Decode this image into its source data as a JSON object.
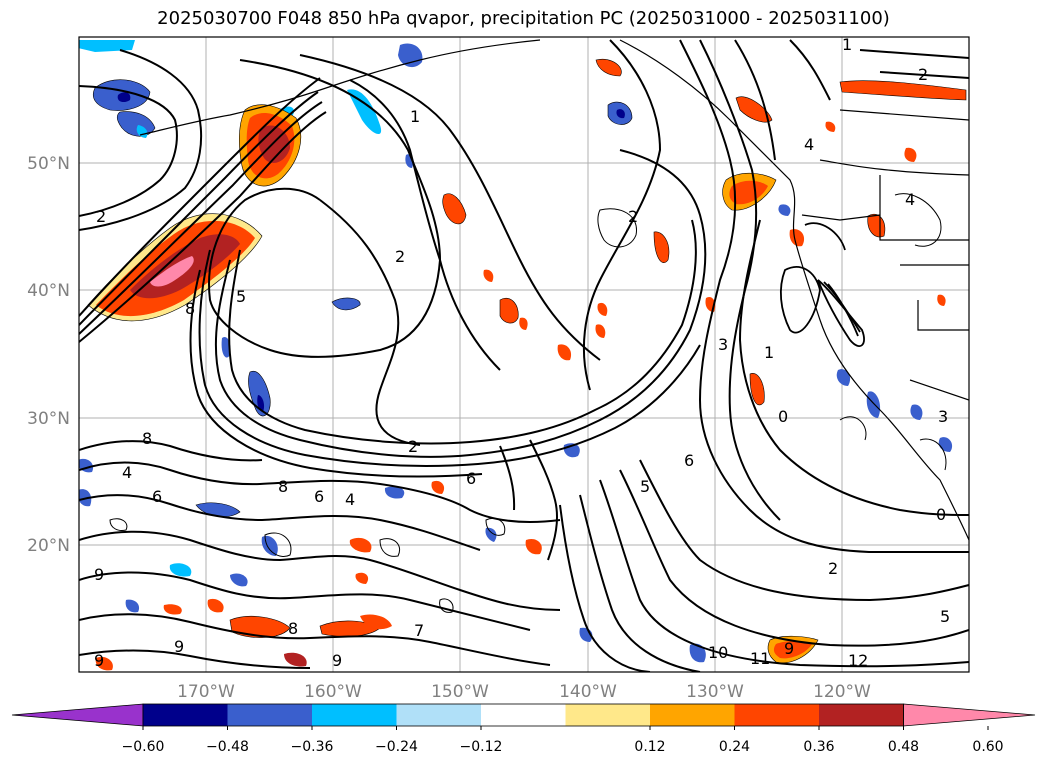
{
  "title": "2025030700 F048 850 hPa qvapor, precipitation PC (2025031000 - 2025031100)",
  "map": {
    "lat_labels": [
      "50°N",
      "40°N",
      "30°N",
      "20°N"
    ],
    "lon_labels": [
      "170°W",
      "160°W",
      "150°W",
      "140°W",
      "130°W",
      "120°W"
    ],
    "contour_labels": [
      "1",
      "2",
      "2",
      "1",
      "2",
      "4",
      "4",
      "8",
      "5",
      "8",
      "6",
      "8",
      "4",
      "6",
      "2",
      "3",
      "1",
      "2",
      "0",
      "6",
      "5",
      "2",
      "8",
      "9",
      "9",
      "9",
      "9",
      "7",
      "10",
      "11",
      "12",
      "5",
      "0",
      "4",
      "3",
      "9",
      "6"
    ]
  },
  "colorbar": {
    "ticks": [
      "−0.60",
      "−0.48",
      "−0.36",
      "−0.24",
      "−0.12",
      "0.12",
      "0.24",
      "0.36",
      "0.48",
      "0.60"
    ],
    "colors": [
      "#9932cc",
      "#00008b",
      "#3a5fcd",
      "#00bfff",
      "#b0e0f8",
      "#ffffff",
      "#ffe88a",
      "#ffa500",
      "#ff4500",
      "#b22222",
      "#ff88aa"
    ]
  }
}
